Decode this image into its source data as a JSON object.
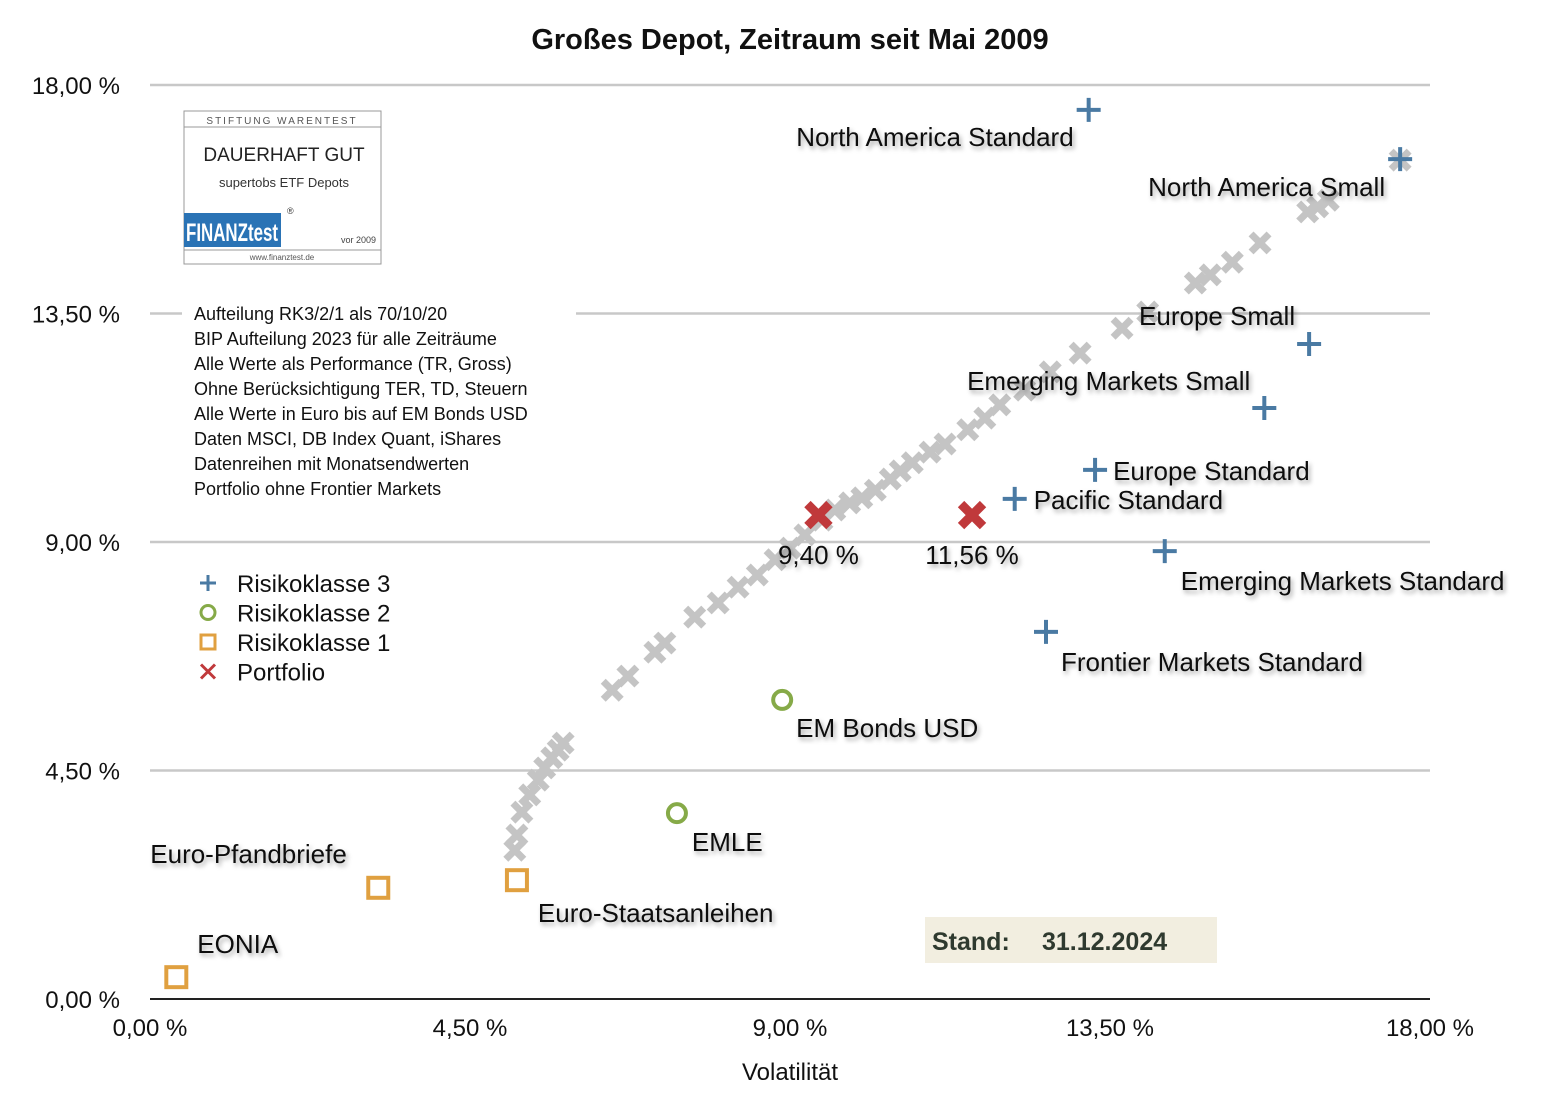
{
  "chart_data": {
    "type": "scatter",
    "title": "Großes Depot, Zeitraum seit Mai 2009",
    "xlabel": "Volatilität",
    "ylabel": "",
    "xlim": [
      0,
      18
    ],
    "ylim": [
      0,
      18
    ],
    "xticks": [
      "0,00 %",
      "4,50 %",
      "9,00 %",
      "13,50 %",
      "18,00 %"
    ],
    "yticks": [
      "0,00 %",
      "4,50 %",
      "9,00 %",
      "13,50 %",
      "18,00 %"
    ],
    "xtick_values": [
      0,
      4.5,
      9,
      13.5,
      18
    ],
    "ytick_values": [
      0,
      4.5,
      9,
      13.5,
      18
    ],
    "grid": "horizontal",
    "legend_position": "left",
    "colors": {
      "rk3": "#4a7aa3",
      "rk2": "#86aa48",
      "rk1": "#e0a040",
      "portfolio": "#c0393b",
      "frontier": "#c4c4c4"
    },
    "series": [
      {
        "name": "Risikoklasse 3",
        "marker": "plus",
        "points": [
          {
            "label": "North America Standard",
            "x": 13.2,
            "y": 17.51
          },
          {
            "label": "North America Small",
            "x": 17.58,
            "y": 16.54
          },
          {
            "label": "Europe Small",
            "x": 16.3,
            "y": 12.9
          },
          {
            "label": "Emerging Markets Small",
            "x": 15.67,
            "y": 11.64
          },
          {
            "label": "Europe Standard",
            "x": 13.29,
            "y": 10.42
          },
          {
            "label": "Pacific Standard",
            "x": 12.16,
            "y": 9.85
          },
          {
            "label": "Emerging Markets Standard",
            "x": 14.27,
            "y": 8.82
          },
          {
            "label": "Frontier Markets Standard",
            "x": 12.6,
            "y": 7.23
          }
        ]
      },
      {
        "name": "Risikoklasse 2",
        "marker": "circle",
        "points": [
          {
            "label": "EM Bonds USD",
            "x": 8.89,
            "y": 5.89
          },
          {
            "label": "EMLE",
            "x": 7.41,
            "y": 3.66
          }
        ]
      },
      {
        "name": "Risikoklasse 1",
        "marker": "square",
        "points": [
          {
            "label": "Euro-Pfandbriefe",
            "x": 3.21,
            "y": 2.19
          },
          {
            "label": "Euro-Staatsanleihen",
            "x": 5.16,
            "y": 2.34
          },
          {
            "label": "EONIA",
            "x": 0.37,
            "y": 0.43
          }
        ]
      },
      {
        "name": "Portfolio",
        "marker": "x",
        "points": [
          {
            "label": "9,40 %",
            "x": 9.4,
            "y": 9.53
          },
          {
            "label": "11,56 %",
            "x": 11.56,
            "y": 9.53
          }
        ]
      },
      {
        "marker": "x",
        "points": [
          {
            "x": 5.13,
            "y": 2.93
          },
          {
            "x": 5.16,
            "y": 3.23
          },
          {
            "x": 5.23,
            "y": 3.68
          },
          {
            "x": 5.34,
            "y": 4.02
          },
          {
            "x": 5.46,
            "y": 4.31
          },
          {
            "x": 5.55,
            "y": 4.55
          },
          {
            "x": 5.65,
            "y": 4.75
          },
          {
            "x": 5.74,
            "y": 4.9
          },
          {
            "x": 5.81,
            "y": 5.04
          },
          {
            "x": 6.5,
            "y": 6.08
          },
          {
            "x": 6.72,
            "y": 6.36
          },
          {
            "x": 7.1,
            "y": 6.83
          },
          {
            "x": 7.24,
            "y": 7.01
          },
          {
            "x": 7.66,
            "y": 7.52
          },
          {
            "x": 7.99,
            "y": 7.8
          },
          {
            "x": 8.27,
            "y": 8.11
          },
          {
            "x": 8.54,
            "y": 8.35
          },
          {
            "x": 8.79,
            "y": 8.65
          },
          {
            "x": 9.0,
            "y": 8.88
          },
          {
            "x": 9.21,
            "y": 9.14
          },
          {
            "x": 9.45,
            "y": 9.43
          },
          {
            "x": 9.63,
            "y": 9.63
          },
          {
            "x": 9.84,
            "y": 9.77
          },
          {
            "x": 10.01,
            "y": 9.87
          },
          {
            "x": 10.2,
            "y": 10.02
          },
          {
            "x": 10.41,
            "y": 10.24
          },
          {
            "x": 10.55,
            "y": 10.4
          },
          {
            "x": 10.72,
            "y": 10.56
          },
          {
            "x": 10.97,
            "y": 10.77
          },
          {
            "x": 11.18,
            "y": 10.93
          },
          {
            "x": 11.5,
            "y": 11.21
          },
          {
            "x": 11.74,
            "y": 11.44
          },
          {
            "x": 11.95,
            "y": 11.7
          },
          {
            "x": 12.3,
            "y": 11.99
          },
          {
            "x": 12.66,
            "y": 12.35
          },
          {
            "x": 13.08,
            "y": 12.72
          },
          {
            "x": 13.67,
            "y": 13.21
          },
          {
            "x": 14.03,
            "y": 13.53
          },
          {
            "x": 14.7,
            "y": 14.1
          },
          {
            "x": 14.91,
            "y": 14.26
          },
          {
            "x": 15.22,
            "y": 14.51
          },
          {
            "x": 15.61,
            "y": 14.89
          },
          {
            "x": 16.28,
            "y": 15.5
          },
          {
            "x": 16.42,
            "y": 15.6
          },
          {
            "x": 16.57,
            "y": 15.73
          },
          {
            "x": 17.58,
            "y": 16.52
          }
        ]
      }
    ],
    "annotations": [
      "Aufteilung RK3/2/1 als 70/10/20",
      "BIP Aufteilung 2023 für alle Zeiträume",
      "Alle Werte als Performance (TR, Gross)",
      "Ohne Berücksichtigung TER, TD, Steuern",
      "Alle Werte in Euro bis auf EM Bonds USD",
      "Daten MSCI, DB Index Quant, iShares",
      "Datenreihen mit Monatsendwerten",
      "Portfolio ohne Frontier Markets"
    ],
    "stand": {
      "label": "Stand:",
      "date": "31.12.2024"
    },
    "logo": {
      "header": "STIFTUNG WARENTEST",
      "rating": "DAUERHAFT GUT",
      "subject": "supertobs ETF Depots",
      "brand": "FINANZtest",
      "year": "vor 2009",
      "url": "www.finanztest.de"
    }
  }
}
